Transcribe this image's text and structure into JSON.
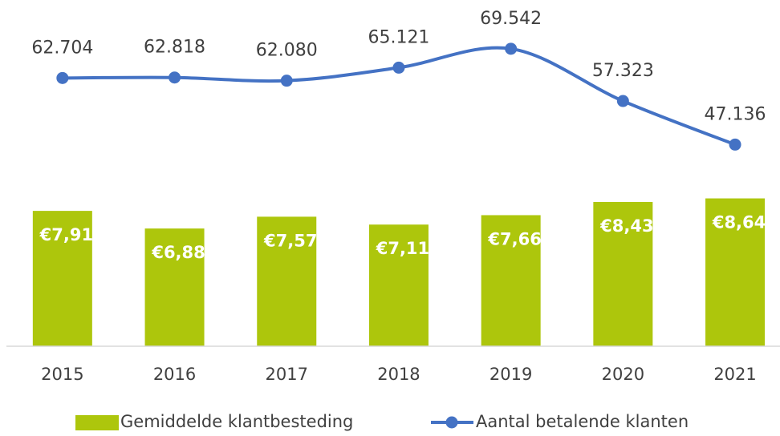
{
  "chart_data": {
    "type": "bar_line",
    "categories": [
      "2015",
      "2016",
      "2017",
      "2018",
      "2019",
      "2020",
      "2021"
    ],
    "series": [
      {
        "name": "Gemiddelde klantbesteding",
        "type": "bar",
        "color": "#adc60c",
        "values": [
          7.91,
          6.88,
          7.57,
          7.11,
          7.66,
          8.43,
          8.64
        ],
        "value_labels": [
          "€7,91",
          "€6,88",
          "€7,57",
          "€7,11",
          "€7,66",
          "€8,43",
          "€8,64"
        ]
      },
      {
        "name": "Aantal betalende klanten",
        "type": "line",
        "axis": "y2",
        "color": "#4472c4",
        "values": [
          62704,
          62818,
          62080,
          65121,
          69542,
          57323,
          47136
        ],
        "value_labels": [
          "62.704",
          "62.818",
          "62.080",
          "65.121",
          "69.542",
          "57.323",
          "47.136"
        ]
      }
    ],
    "ylim": [
      0,
      20
    ],
    "y2lim": [
      0,
      80000
    ],
    "legend": "bottom"
  }
}
